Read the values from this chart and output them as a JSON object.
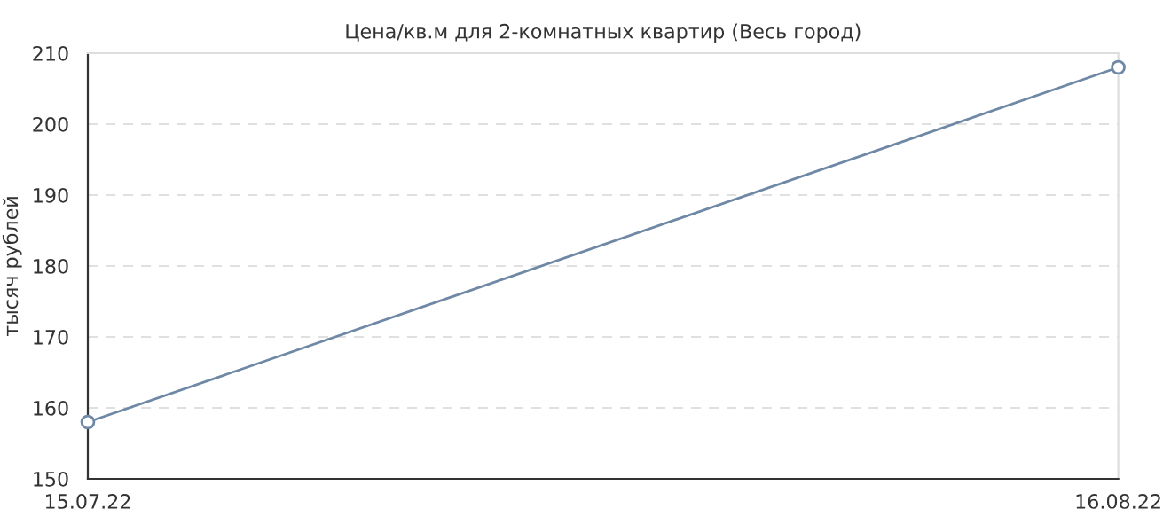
{
  "chart_data": {
    "type": "line",
    "title": "Цена/кв.м для 2-комнатных квартир (Весь город)",
    "ylabel": "тысяч рублей",
    "x": [
      "2022-07-15",
      "2022-08-16"
    ],
    "series": [
      {
        "color": "#6e88a5",
        "values": [
          158,
          208
        ]
      }
    ],
    "xlim": [
      "2022-07-15",
      "2022-08-16"
    ],
    "xticks": [
      {
        "value": "2022-07-15",
        "label": "15.07.22"
      },
      {
        "value": "2022-08-16",
        "label": "16.08.22"
      }
    ],
    "ylim": [
      150,
      210
    ],
    "yticks": [
      150,
      160,
      170,
      180,
      190,
      200,
      210
    ],
    "grid": "y",
    "marker": "circle",
    "line_style": "solid",
    "legend": false
  }
}
